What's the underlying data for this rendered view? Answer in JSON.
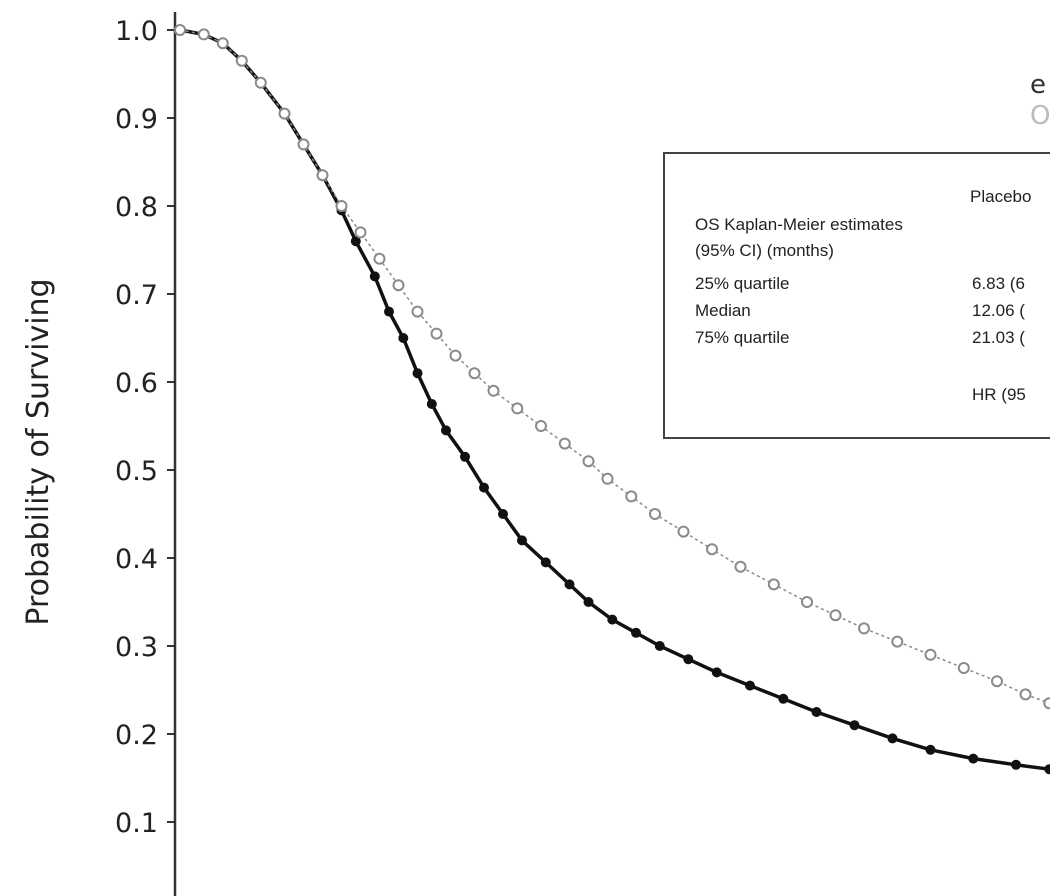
{
  "chart_data": {
    "type": "line",
    "title": "",
    "xlabel": "",
    "ylabel": "Probability of Surviving",
    "ylim": [
      0,
      1.0
    ],
    "yticks": [
      "0.1",
      "0.2",
      "0.3",
      "0.4",
      "0.5",
      "0.6",
      "0.7",
      "0.8",
      "0.9",
      "1.0"
    ],
    "grid": false,
    "legend": {
      "placement": "top-right",
      "entries": [
        "e",
        "O"
      ]
    },
    "series": [
      {
        "color": "#111111",
        "marker": "circle",
        "line_style": "solid",
        "points": [
          [
            0.0,
            1.0
          ],
          [
            0.05,
            0.995
          ],
          [
            0.09,
            0.985
          ],
          [
            0.13,
            0.965
          ],
          [
            0.17,
            0.94
          ],
          [
            0.22,
            0.905
          ],
          [
            0.26,
            0.87
          ],
          [
            0.3,
            0.835
          ],
          [
            0.34,
            0.795
          ],
          [
            0.37,
            0.76
          ],
          [
            0.41,
            0.72
          ],
          [
            0.44,
            0.68
          ],
          [
            0.47,
            0.65
          ],
          [
            0.5,
            0.61
          ],
          [
            0.53,
            0.575
          ],
          [
            0.56,
            0.545
          ],
          [
            0.6,
            0.515
          ],
          [
            0.64,
            0.48
          ],
          [
            0.68,
            0.45
          ],
          [
            0.72,
            0.42
          ],
          [
            0.77,
            0.395
          ],
          [
            0.82,
            0.37
          ],
          [
            0.86,
            0.35
          ],
          [
            0.91,
            0.33
          ],
          [
            0.96,
            0.315
          ],
          [
            1.01,
            0.3
          ],
          [
            1.07,
            0.285
          ],
          [
            1.13,
            0.27
          ],
          [
            1.2,
            0.255
          ],
          [
            1.27,
            0.24
          ],
          [
            1.34,
            0.225
          ],
          [
            1.42,
            0.21
          ],
          [
            1.5,
            0.195
          ],
          [
            1.58,
            0.182
          ],
          [
            1.67,
            0.172
          ],
          [
            1.76,
            0.165
          ],
          [
            1.83,
            0.16
          ]
        ]
      },
      {
        "color": "#8a8a8a",
        "marker": "circle",
        "line_style": "dashed",
        "points": [
          [
            0.0,
            1.0
          ],
          [
            0.05,
            0.995
          ],
          [
            0.09,
            0.985
          ],
          [
            0.13,
            0.965
          ],
          [
            0.17,
            0.94
          ],
          [
            0.22,
            0.905
          ],
          [
            0.26,
            0.87
          ],
          [
            0.3,
            0.835
          ],
          [
            0.34,
            0.8
          ],
          [
            0.38,
            0.77
          ],
          [
            0.42,
            0.74
          ],
          [
            0.46,
            0.71
          ],
          [
            0.5,
            0.68
          ],
          [
            0.54,
            0.655
          ],
          [
            0.58,
            0.63
          ],
          [
            0.62,
            0.61
          ],
          [
            0.66,
            0.59
          ],
          [
            0.71,
            0.57
          ],
          [
            0.76,
            0.55
          ],
          [
            0.81,
            0.53
          ],
          [
            0.86,
            0.51
          ],
          [
            0.9,
            0.49
          ],
          [
            0.95,
            0.47
          ],
          [
            1.0,
            0.45
          ],
          [
            1.06,
            0.43
          ],
          [
            1.12,
            0.41
          ],
          [
            1.18,
            0.39
          ],
          [
            1.25,
            0.37
          ],
          [
            1.32,
            0.35
          ],
          [
            1.38,
            0.335
          ],
          [
            1.44,
            0.32
          ],
          [
            1.51,
            0.305
          ],
          [
            1.58,
            0.29
          ],
          [
            1.65,
            0.275
          ],
          [
            1.72,
            0.26
          ],
          [
            1.78,
            0.245
          ],
          [
            1.83,
            0.235
          ]
        ]
      }
    ],
    "annotation_table": {
      "col_header": "Placebo",
      "rows": [
        {
          "label": "OS Kaplan-Meier estimates",
          "value": ""
        },
        {
          "label": "(95% CI) (months)",
          "value": ""
        },
        {
          "label": "25% quartile",
          "value": "6.83 (6"
        },
        {
          "label": "Median",
          "value": "12.06 ("
        },
        {
          "label": "75% quartile",
          "value": "21.03 ("
        }
      ],
      "footer": "HR (95"
    }
  }
}
